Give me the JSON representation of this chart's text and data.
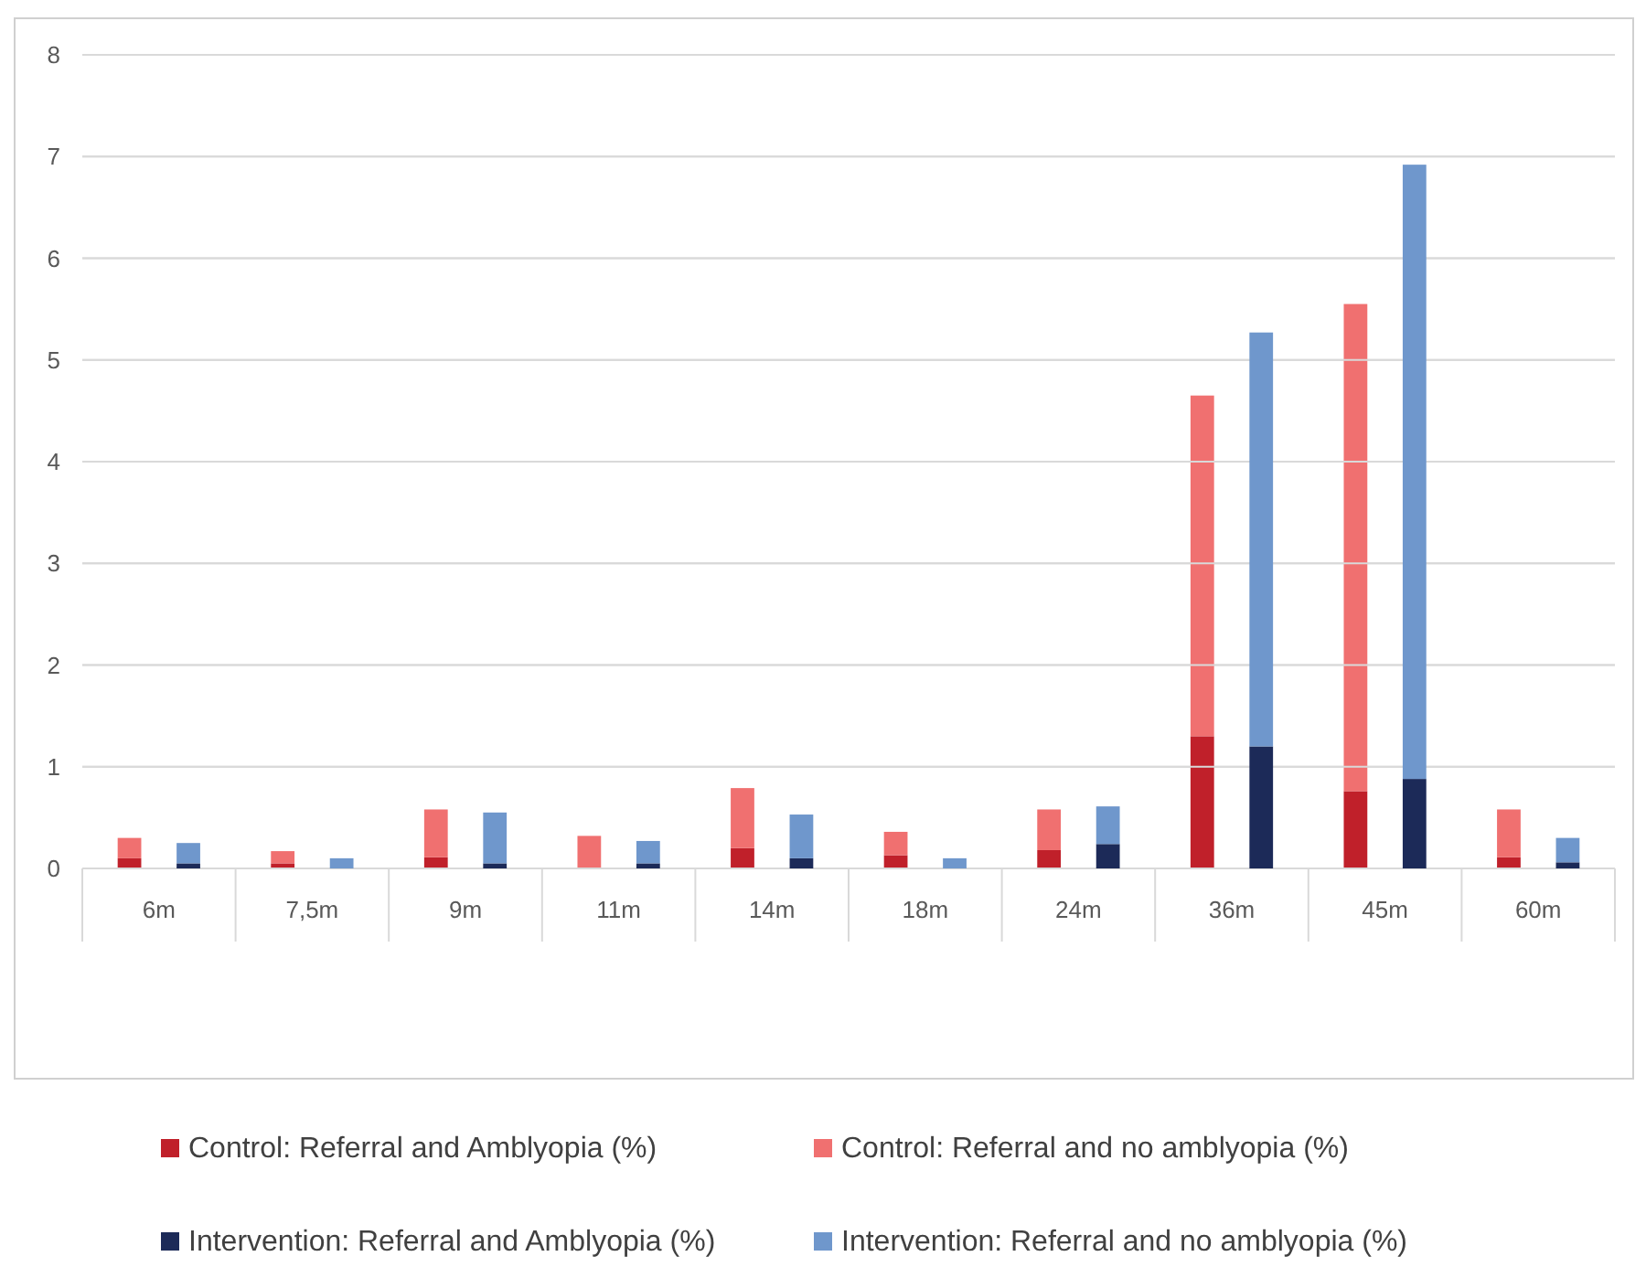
{
  "chart_data": [
    {
      "type": "bar",
      "stacked": true,
      "categories": [
        "6m",
        "7,5m",
        "9m",
        "11m",
        "14m",
        "18m",
        "24m",
        "36m",
        "45m",
        "60m"
      ],
      "series": [
        {
          "name": "Control: Referral and Amblyopia (%)",
          "color": "#c0202a",
          "values": [
            0.1,
            0.05,
            0.11,
            0,
            0.2,
            0.13,
            0.18,
            1.3,
            0.76,
            0.11
          ]
        },
        {
          "name": "Control: Referral and no amblyopia (%)",
          "color": "#f07070",
          "values": [
            0.2,
            0.12,
            0.47,
            0.32,
            0.59,
            0.23,
            0.4,
            3.35,
            4.79,
            0.47
          ]
        }
      ],
      "ylim": [
        0,
        8
      ],
      "yticks": [
        0,
        1,
        2,
        3,
        4,
        5,
        6,
        7,
        8
      ],
      "grid": "y",
      "legend": "bottom"
    },
    {
      "type": "bar",
      "stacked": true,
      "categories": [
        null,
        null,
        null,
        null,
        null,
        null,
        null,
        null,
        null,
        null
      ],
      "series": [
        {
          "name": "Intervention: Referral and Amblyopia (%)",
          "color": "#1c2a58",
          "values": [
            0.05,
            0,
            0.05,
            0.05,
            0.1,
            0,
            0.24,
            1.2,
            0.88,
            0.06
          ]
        },
        {
          "name": "Intervention: Referral and no amblyopia (%)",
          "color": "#6f97cc",
          "values": [
            0.2,
            0.1,
            0.5,
            0.22,
            0.43,
            0.1,
            0.37,
            4.07,
            6.04,
            0.24
          ]
        }
      ],
      "ylim": [
        0,
        8
      ],
      "yticks": [
        0,
        1,
        2,
        3,
        4,
        5,
        6,
        7,
        8
      ],
      "grid": "y",
      "tick_labels": false,
      "legend": "bottom"
    }
  ]
}
